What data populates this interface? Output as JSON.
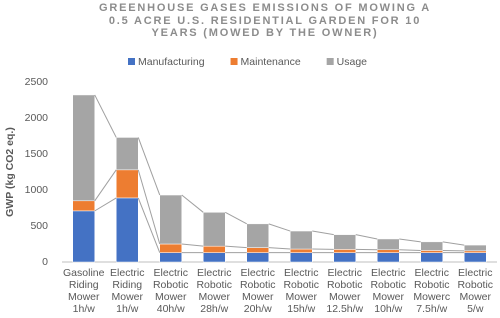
{
  "chart_data": {
    "type": "stacked_bar",
    "title": "GREENHOUSE GASES EMISSIONS OF MOWING A 0.5 ACRE U.S. RESIDENTIAL GARDEN FOR 10 YEARS (MOWED BY THE OWNER)",
    "y_label": "GWP (kg CO2 eq.)",
    "categories": [
      "Gasoline Riding Mower 1h/w",
      "Electric Riding Mower 1h/w",
      "Electric Robotic Mower 40h/w",
      "Electric Robotic Mower 28h/w",
      "Electric Robotic Mower 20h/w",
      "Electric Robotic Mower 15h/w",
      "Electric Robotic Mower 12.5h/w",
      "Electric Robotic Mower 10h/w",
      "Electric Robotic Mowerc 7.5h/w",
      "Electric Robotic Mower 5/w"
    ],
    "series": [
      {
        "name": "Manufacturing",
        "color": "#4472c4",
        "values": [
          710,
          890,
          130,
          130,
          130,
          130,
          130,
          130,
          130,
          130
        ]
      },
      {
        "name": "Maintenance",
        "color": "#ed7d31",
        "values": [
          140,
          390,
          120,
          90,
          70,
          50,
          45,
          40,
          30,
          25
        ]
      },
      {
        "name": "Usage",
        "color": "#a5a5a5",
        "values": [
          1470,
          450,
          680,
          470,
          330,
          250,
          205,
          150,
          120,
          80
        ]
      }
    ],
    "ylim": [
      0,
      2500
    ],
    "yticks": [
      0,
      500,
      1000,
      1500,
      2000,
      2500
    ],
    "grid": false
  }
}
